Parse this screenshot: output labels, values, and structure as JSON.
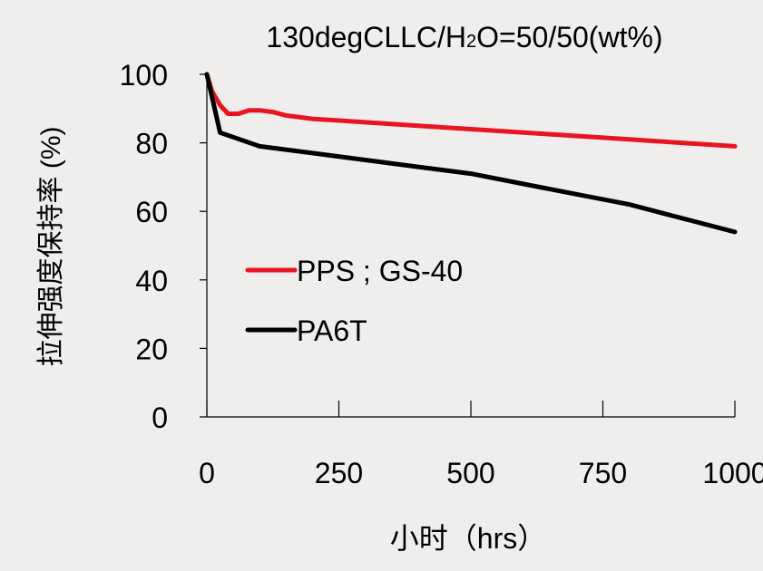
{
  "chart_data": {
    "type": "line",
    "title": "130degCLLC/H2O=50/50(wt%)",
    "xlabel": "小时（hrs）",
    "ylabel": "拉伸强度保持率 (%)",
    "xlim": [
      0,
      1000
    ],
    "ylim": [
      0,
      100
    ],
    "x_ticks": [
      0,
      250,
      500,
      750,
      1000
    ],
    "y_ticks": [
      0,
      20,
      40,
      60,
      80,
      100
    ],
    "grid": false,
    "legend_position": "lower-left",
    "series": [
      {
        "name": "PPS ; GS-40",
        "color": "#e8141f",
        "x": [
          0,
          10,
          25,
          40,
          60,
          80,
          100,
          125,
          150,
          200,
          300,
          400,
          500,
          600,
          700,
          800,
          900,
          1000
        ],
        "y": [
          100,
          95,
          91,
          88.5,
          88.5,
          89.5,
          89.5,
          89,
          88,
          87,
          86,
          85,
          84,
          83,
          82,
          81,
          80,
          79
        ]
      },
      {
        "name": "PA6T",
        "color": "#000000",
        "x": [
          0,
          25,
          100,
          200,
          300,
          400,
          500,
          600,
          700,
          800,
          900,
          1000
        ],
        "y": [
          100,
          83,
          79,
          77,
          75,
          73,
          71,
          68,
          65,
          62,
          58,
          54
        ]
      }
    ]
  }
}
